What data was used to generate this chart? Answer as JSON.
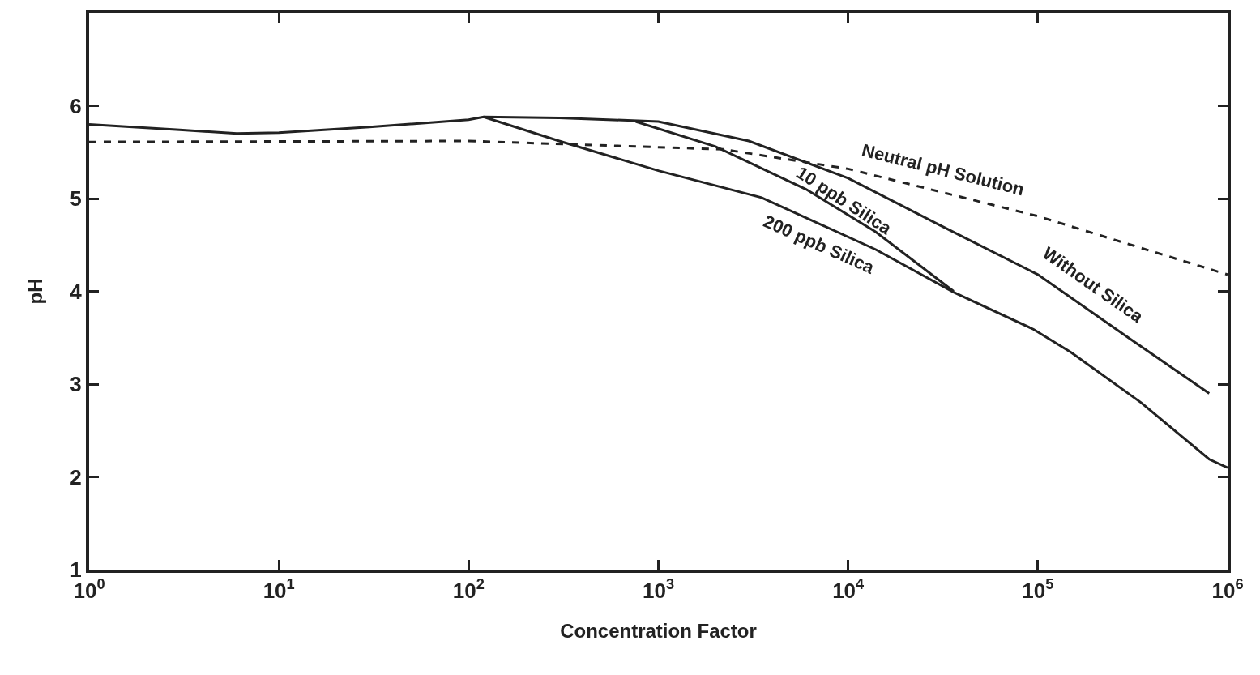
{
  "chart_data": {
    "type": "line",
    "xlabel": "Concentration Factor",
    "ylabel": "pH",
    "log": "x",
    "grid": false,
    "legend": false,
    "marker": "none",
    "xlim": [
      1,
      1000000
    ],
    "xticks": [
      {
        "value": 1,
        "label": "10$^{0}$"
      },
      {
        "value": 10,
        "label": "10$^{1}$"
      },
      {
        "value": 100,
        "label": "10$^{2}$"
      },
      {
        "value": 1000,
        "label": "10$^{3}$"
      },
      {
        "value": 10000,
        "label": "10$^{4}$"
      },
      {
        "value": 100000,
        "label": "10$^{5}$"
      },
      {
        "value": 1000000,
        "label": "10$^{6}$"
      }
    ],
    "ylim": [
      1,
      7
    ],
    "yticks": [
      1,
      2,
      3,
      4,
      5,
      6
    ],
    "series": [
      {
        "name": "Without Silica",
        "color": "#222222",
        "line_style": "solid",
        "x": [
          1,
          3,
          6,
          10,
          30,
          100,
          120,
          300,
          1000,
          3000,
          10000,
          30000,
          100000,
          300000,
          800000
        ],
        "values": [
          5.8,
          5.74,
          5.7,
          5.71,
          5.77,
          5.85,
          5.88,
          5.87,
          5.83,
          5.62,
          5.22,
          4.72,
          4.18,
          3.5,
          2.9
        ]
      },
      {
        "name": "10 ppb Silica",
        "color": "#222222",
        "line_style": "solid",
        "x": [
          760,
          2000,
          6000,
          14000,
          36000
        ],
        "values": [
          5.83,
          5.56,
          5.1,
          4.64,
          4.0
        ]
      },
      {
        "name": "200 ppb Silica",
        "color": "#222222",
        "line_style": "solid",
        "x": [
          120,
          300,
          1000,
          3500,
          14000,
          36000,
          95000,
          150000,
          350000,
          800000,
          1000000
        ],
        "values": [
          5.88,
          5.62,
          5.3,
          5.01,
          4.45,
          3.99,
          3.59,
          3.34,
          2.8,
          2.19,
          2.1
        ]
      },
      {
        "name": "Neutral pH Solution",
        "color": "#222222",
        "line_style": "dashed",
        "x": [
          1,
          100,
          2200,
          10000,
          100000,
          1000000
        ],
        "values": [
          5.61,
          5.62,
          5.53,
          5.32,
          4.81,
          4.18
        ]
      }
    ]
  }
}
